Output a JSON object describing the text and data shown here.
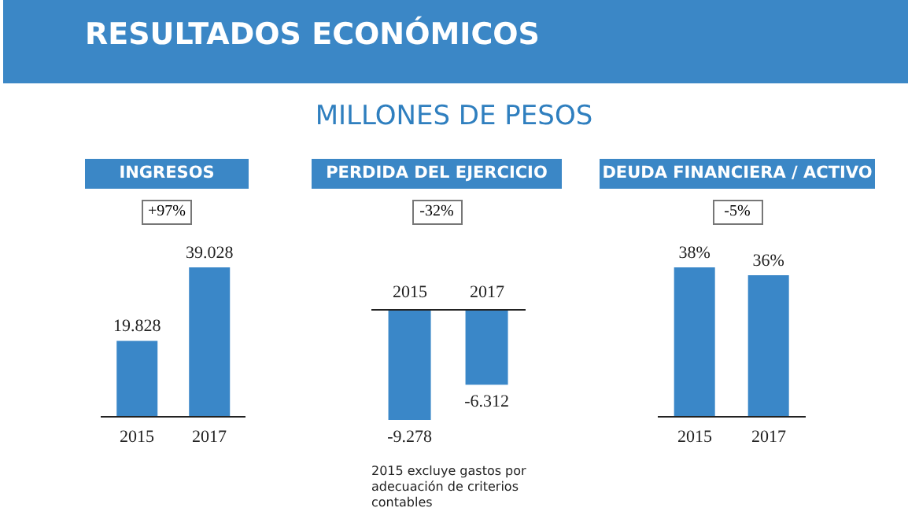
{
  "chart_data": [
    {
      "type": "other",
      "title": "RESULTADOS ECONÓMICOS",
      "subtitle": "MILLONES DE PESOS"
    },
    {
      "type": "bar",
      "title": "INGRESOS",
      "subtitle": "+97%",
      "categories": [
        "2015",
        "2017"
      ],
      "values": [
        19828,
        39028
      ],
      "value_labels": [
        "19.828",
        "39.028"
      ],
      "color": "#3a87c8"
    },
    {
      "type": "bar",
      "title": "PERDIDA DEL EJERCICIO",
      "subtitle": "-32%",
      "categories": [
        "2015",
        "2017"
      ],
      "values": [
        -9278,
        -6312
      ],
      "value_labels": [
        "-9.278",
        "-6.312"
      ],
      "color": "#3a87c8",
      "annotations": [
        "2015 excluye gastos por adecuación de criterios contables"
      ]
    },
    {
      "type": "bar",
      "title": "DEUDA FINANCIERA / ACTIVO",
      "subtitle": "-5%",
      "categories": [
        "2015",
        "2017"
      ],
      "values": [
        38,
        36
      ],
      "value_labels": [
        "38%",
        "36%"
      ],
      "color": "#3a87c8"
    }
  ]
}
